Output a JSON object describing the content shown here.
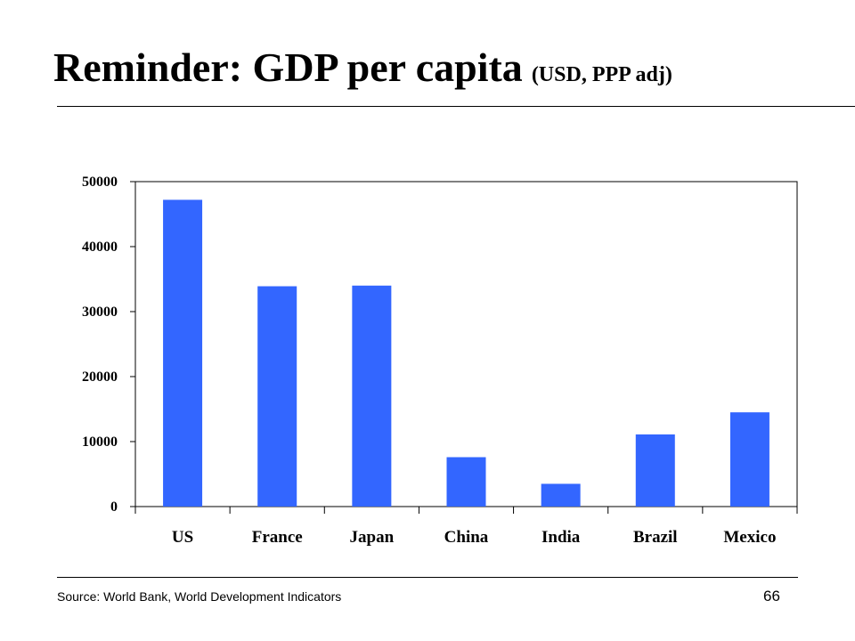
{
  "slide": {
    "title": "Reminder:  GDP per capita",
    "subtitle": "(USD, PPP adj)",
    "source": "Source:  World Bank, World Development Indicators",
    "page_number": "66"
  },
  "chart_data": {
    "type": "bar",
    "categories": [
      "US",
      "France",
      "Japan",
      "China",
      "India",
      "Brazil",
      "Mexico"
    ],
    "values": [
      47200,
      33900,
      34000,
      7600,
      3500,
      11100,
      14500
    ],
    "ylim": [
      0,
      50000
    ],
    "yticks": [
      0,
      10000,
      20000,
      30000,
      40000,
      50000
    ],
    "grid": false,
    "legend": "none",
    "bar_color": "#3366ff"
  }
}
